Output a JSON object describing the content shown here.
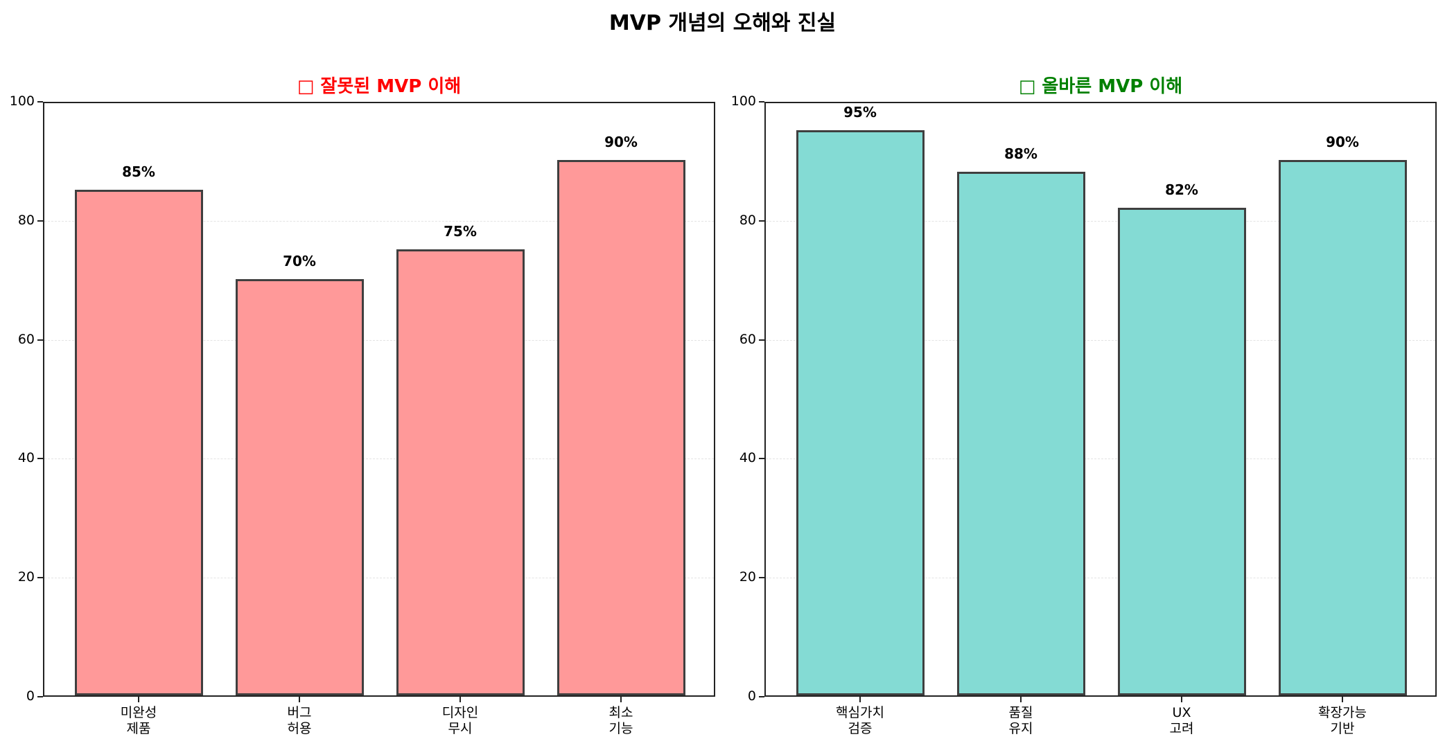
{
  "figure": {
    "title": "MVP 개념의 오해와 진실"
  },
  "chart_data": [
    {
      "type": "bar",
      "title": "□ 잘못된 MVP 이해",
      "title_color": "#ff0000",
      "categories": [
        "미완성\n제품",
        "버그\n허용",
        "디자인\n무시",
        "최소\n기능"
      ],
      "category_lines": [
        [
          "미완성",
          "제품"
        ],
        [
          "버그",
          "허용"
        ],
        [
          "디자인",
          "무시"
        ],
        [
          "최소",
          "기능"
        ]
      ],
      "values": [
        85,
        70,
        75,
        90
      ],
      "value_labels": [
        "85%",
        "70%",
        "75%",
        "90%"
      ],
      "bar_color": "#ff9999",
      "edge_color": "#3f3f3f",
      "xlabel": "",
      "ylabel": "",
      "ylim": [
        0,
        100
      ],
      "yticks": [
        0,
        20,
        40,
        60,
        80,
        100
      ],
      "grid": "y-dashed"
    },
    {
      "type": "bar",
      "title": "□ 올바른 MVP 이해",
      "title_color": "#008000",
      "categories": [
        "핵심가치\n검증",
        "품질\n유지",
        "UX\n고려",
        "확장가능\n기반"
      ],
      "category_lines": [
        [
          "핵심가치",
          "검증"
        ],
        [
          "품질",
          "유지"
        ],
        [
          "UX",
          "고려"
        ],
        [
          "확장가능",
          "기반"
        ]
      ],
      "values": [
        95,
        88,
        82,
        90
      ],
      "value_labels": [
        "95%",
        "88%",
        "82%",
        "90%"
      ],
      "bar_color": "#84dbd4",
      "edge_color": "#3f3f3f",
      "xlabel": "",
      "ylabel": "",
      "ylim": [
        0,
        100
      ],
      "yticks": [
        0,
        20,
        40,
        60,
        80,
        100
      ],
      "grid": "y-dashed"
    }
  ]
}
